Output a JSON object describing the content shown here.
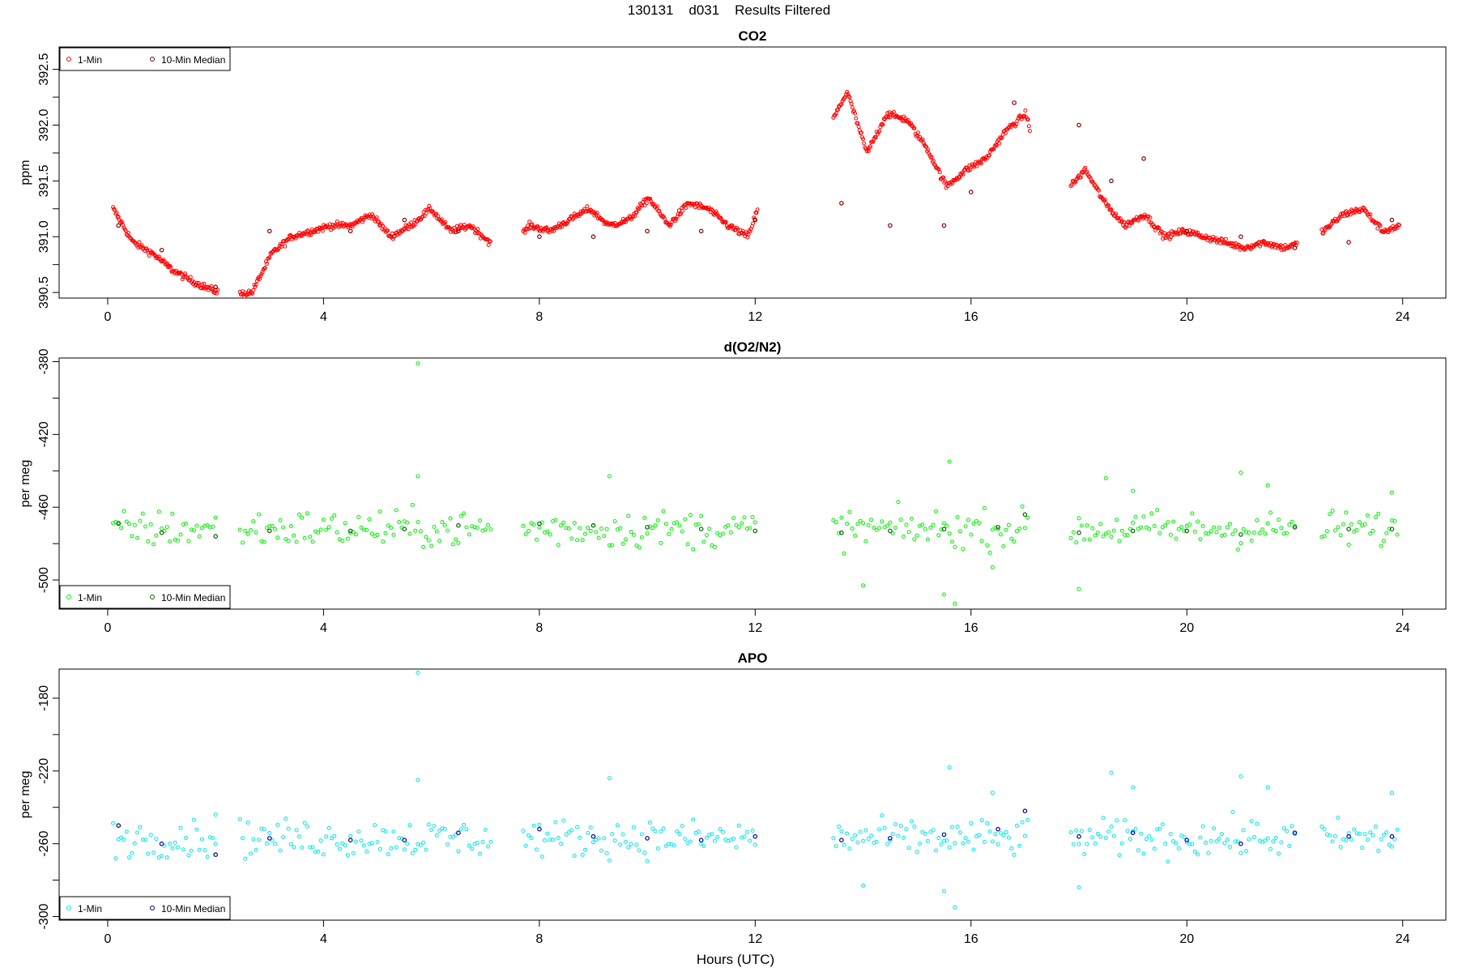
{
  "figure": {
    "title": "130131    d031    Results Filtered",
    "xlabel": "Hours (UTC)"
  },
  "colors": {
    "co2_1min": "#ff0000",
    "co2_median": "#8b0000",
    "o2_1min": "#00ee00",
    "o2_median": "#006400",
    "apo_1min": "#00e5ee",
    "apo_median": "#00008b"
  },
  "chart_data": [
    {
      "type": "scatter",
      "title": "CO2",
      "ylabel": "ppm",
      "xlabel": "",
      "xlim": [
        -0.9,
        24.8
      ],
      "ylim": [
        390.45,
        392.7
      ],
      "x_ticks": [
        "0",
        "4",
        "8",
        "12",
        "16",
        "20",
        "24"
      ],
      "y_ticks": [
        "390.5",
        "391.0",
        "391.5",
        "392.0",
        "392.5"
      ],
      "y_tick_values": [
        390.5,
        391.0,
        391.5,
        392.0,
        392.5
      ],
      "legend": {
        "placement": "top-left",
        "entries": [
          "1-Min",
          "10-Min Median"
        ]
      },
      "series": [
        {
          "name": "1-Min",
          "x_start": 0.1,
          "x_step": 0.25,
          "segments_x": [
            [
              0.1,
              2.05
            ],
            [
              2.45,
              7.1
            ],
            [
              7.7,
              12.05
            ],
            [
              13.45,
              17.1
            ],
            [
              17.85,
              22.05
            ],
            [
              22.5,
              23.95
            ]
          ],
          "values": [
            391.25,
            390.95,
            390.85,
            390.7,
            390.6,
            390.52,
            390.48,
            390.5,
            390.85,
            391.0,
            391.05,
            391.1,
            391.1,
            391.2,
            391.0,
            391.1,
            391.25,
            391.05,
            391.1,
            390.95,
            390.9,
            391.1,
            391.05,
            391.15,
            391.25,
            391.1,
            391.15,
            391.35,
            391.1,
            391.3,
            391.25,
            391.1,
            391.0,
            391.5,
            391.0,
            391.6,
            391.95,
            392.3,
            391.75,
            392.1,
            392.05,
            391.8,
            391.45,
            391.6,
            391.7,
            391.95,
            392.1,
            391.5,
            391.4,
            391.6,
            391.3,
            391.1,
            391.2,
            391.0,
            391.05,
            391.0,
            390.95,
            390.9,
            390.95,
            390.9,
            390.95,
            391.05,
            391.2,
            391.25,
            391.05,
            391.1
          ]
        },
        {
          "name": "10-Min Median",
          "points": [
            [
              0.2,
              391.1
            ],
            [
              1.0,
              390.88
            ],
            [
              2.0,
              390.55
            ],
            [
              3.0,
              391.05
            ],
            [
              4.5,
              391.05
            ],
            [
              5.5,
              391.15
            ],
            [
              6.5,
              391.05
            ],
            [
              8.0,
              391.0
            ],
            [
              9.0,
              391.0
            ],
            [
              10.0,
              391.05
            ],
            [
              11.0,
              391.05
            ],
            [
              12.0,
              391.15
            ],
            [
              13.6,
              391.3
            ],
            [
              14.5,
              391.1
            ],
            [
              15.5,
              391.1
            ],
            [
              16.0,
              391.4
            ],
            [
              16.8,
              392.2
            ],
            [
              18.0,
              392.0
            ],
            [
              18.6,
              391.5
            ],
            [
              19.2,
              391.7
            ],
            [
              20.0,
              391.05
            ],
            [
              21.0,
              391.0
            ],
            [
              22.0,
              390.9
            ],
            [
              23.0,
              390.95
            ],
            [
              23.8,
              391.15
            ]
          ]
        }
      ]
    },
    {
      "type": "scatter",
      "title": "d(O2/N2)",
      "ylabel": "per meg",
      "xlabel": "",
      "xlim": [
        -0.9,
        24.8
      ],
      "ylim": [
        -516,
        -378
      ],
      "x_ticks": [
        "0",
        "4",
        "8",
        "12",
        "16",
        "20",
        "24"
      ],
      "y_ticks": [
        "-500",
        "-460",
        "-420",
        "-380"
      ],
      "y_tick_values": [
        -500,
        -460,
        -420,
        -380
      ],
      "legend": {
        "placement": "bottom-left",
        "entries": [
          "1-Min",
          "10-Min Median"
        ]
      },
      "series": [
        {
          "name": "1-Min",
          "segments_x": [
            [
              0.1,
              2.05
            ],
            [
              2.45,
              7.1
            ],
            [
              7.7,
              12.05
            ],
            [
              13.45,
              17.1
            ],
            [
              17.85,
              22.05
            ],
            [
              22.5,
              23.95
            ]
          ],
          "center": -472,
          "spread": 8,
          "outliers": [
            [
              5.75,
              -381
            ],
            [
              5.75,
              -443
            ],
            [
              9.3,
              -443
            ],
            [
              15.6,
              -435
            ],
            [
              16.4,
              -493
            ],
            [
              15.5,
              -508
            ],
            [
              14.0,
              -503
            ],
            [
              15.7,
              -513
            ],
            [
              18.0,
              -505
            ],
            [
              18.5,
              -444
            ],
            [
              21.0,
              -441
            ],
            [
              21.5,
              -448
            ],
            [
              19.0,
              -451
            ],
            [
              23.8,
              -452
            ]
          ]
        },
        {
          "name": "10-Min Median",
          "points": [
            [
              0.2,
              -469
            ],
            [
              1.0,
              -474
            ],
            [
              2.0,
              -476
            ],
            [
              3.0,
              -473
            ],
            [
              4.5,
              -473
            ],
            [
              5.5,
              -472
            ],
            [
              6.5,
              -470
            ],
            [
              8.0,
              -469
            ],
            [
              9.0,
              -470
            ],
            [
              10.0,
              -471
            ],
            [
              11.0,
              -472
            ],
            [
              12.0,
              -473
            ],
            [
              13.6,
              -474
            ],
            [
              14.5,
              -473
            ],
            [
              15.5,
              -472
            ],
            [
              16.5,
              -471
            ],
            [
              17.0,
              -464
            ],
            [
              18.0,
              -474
            ],
            [
              19.0,
              -473
            ],
            [
              20.0,
              -473
            ],
            [
              21.0,
              -475
            ],
            [
              22.0,
              -471
            ],
            [
              23.0,
              -472
            ],
            [
              23.8,
              -472
            ]
          ]
        }
      ]
    },
    {
      "type": "scatter",
      "title": "APO",
      "ylabel": "per meg",
      "xlabel": "Hours (UTC)",
      "xlim": [
        -0.9,
        24.8
      ],
      "ylim": [
        -302,
        -164
      ],
      "x_ticks": [
        "0",
        "4",
        "8",
        "12",
        "16",
        "20",
        "24"
      ],
      "y_ticks": [
        "-300",
        "-260",
        "-220",
        "-180"
      ],
      "y_tick_values": [
        -300,
        -260,
        -220,
        -180
      ],
      "legend": {
        "placement": "bottom-left",
        "entries": [
          "1-Min",
          "10-Min Median"
        ]
      },
      "series": [
        {
          "name": "1-Min",
          "segments_x": [
            [
              0.1,
              2.05
            ],
            [
              2.45,
              7.1
            ],
            [
              7.7,
              12.05
            ],
            [
              13.45,
              17.1
            ],
            [
              17.85,
              22.05
            ],
            [
              22.5,
              23.95
            ]
          ],
          "center": -257,
          "spread": 8,
          "outliers": [
            [
              5.75,
              -166
            ],
            [
              5.75,
              -225
            ],
            [
              9.3,
              -224
            ],
            [
              15.6,
              -218
            ],
            [
              16.4,
              -232
            ],
            [
              15.5,
              -286
            ],
            [
              14.0,
              -283
            ],
            [
              15.7,
              -295
            ],
            [
              18.0,
              -284
            ],
            [
              18.6,
              -221
            ],
            [
              21.0,
              -223
            ],
            [
              21.5,
              -229
            ],
            [
              19.0,
              -229
            ],
            [
              23.8,
              -232
            ],
            [
              2.0,
              -244
            ]
          ]
        },
        {
          "name": "10-Min Median",
          "points": [
            [
              0.2,
              -250
            ],
            [
              1.0,
              -260
            ],
            [
              2.0,
              -266
            ],
            [
              3.0,
              -257
            ],
            [
              4.5,
              -258
            ],
            [
              5.5,
              -258
            ],
            [
              6.5,
              -254
            ],
            [
              8.0,
              -252
            ],
            [
              9.0,
              -256
            ],
            [
              10.0,
              -257
            ],
            [
              11.0,
              -258
            ],
            [
              12.0,
              -256
            ],
            [
              13.6,
              -258
            ],
            [
              14.5,
              -257
            ],
            [
              15.5,
              -255
            ],
            [
              16.5,
              -252
            ],
            [
              17.0,
              -242
            ],
            [
              18.0,
              -256
            ],
            [
              19.0,
              -254
            ],
            [
              20.0,
              -258
            ],
            [
              21.0,
              -260
            ],
            [
              22.0,
              -254
            ],
            [
              23.0,
              -256
            ],
            [
              23.8,
              -256
            ]
          ]
        }
      ]
    }
  ]
}
